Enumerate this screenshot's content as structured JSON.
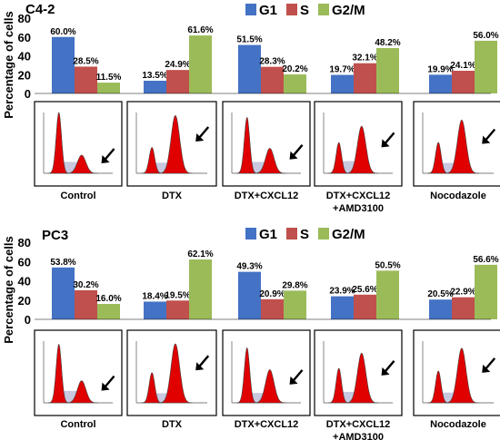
{
  "chart_data": [
    {
      "type": "bar",
      "panel_title": "C4-2",
      "ylabel": "Percentage of cells",
      "ylim": [
        0,
        80
      ],
      "yticks": [
        0,
        20,
        40,
        60,
        80
      ],
      "legend_placement": "top-center",
      "categories": [
        "Control",
        "DTX",
        "DTX+CXCL12",
        "DTX+CXCL12\n+AMD3100",
        "Nocodazole"
      ],
      "series": [
        {
          "name": "G1",
          "color": "#4472C4",
          "values": [
            60.0,
            13.5,
            51.5,
            19.7,
            19.9
          ],
          "labels": [
            "60.0%",
            "13.5%",
            "51.5%",
            "19.7%",
            "19.9%"
          ]
        },
        {
          "name": "S",
          "color": "#C0504D",
          "values": [
            28.5,
            24.9,
            28.3,
            32.1,
            24.1
          ],
          "labels": [
            "28.5%",
            "24.9%",
            "28.3%",
            "32.1%",
            "24.1%"
          ]
        },
        {
          "name": "G2/M",
          "color": "#9BBB59",
          "values": [
            11.5,
            61.6,
            20.2,
            48.2,
            56.0
          ],
          "labels": [
            "11.5%",
            "61.6%",
            "20.2%",
            "48.2%",
            "56.0%"
          ]
        }
      ],
      "histogram_colors": {
        "fill": "#E00000",
        "shade": "#C8C8E0",
        "line": "#444444"
      }
    },
    {
      "type": "bar",
      "panel_title": "PC3",
      "ylabel": "Percentage of cells",
      "ylim": [
        0,
        80
      ],
      "yticks": [
        0,
        20,
        40,
        60,
        80
      ],
      "legend_placement": "top-center",
      "categories": [
        "Control",
        "DTX",
        "DTX+CXCL12",
        "DTX+CXCL12\n+AMD3100",
        "Nocodazole"
      ],
      "series": [
        {
          "name": "G1",
          "color": "#4472C4",
          "values": [
            53.8,
            18.4,
            49.3,
            23.9,
            20.5
          ],
          "labels": [
            "53.8%",
            "18.4%",
            "49.3%",
            "23.9%",
            "20.5%"
          ]
        },
        {
          "name": "S",
          "color": "#C0504D",
          "values": [
            30.2,
            19.5,
            20.9,
            25.6,
            22.9
          ],
          "labels": [
            "30.2%",
            "19.5%",
            "20.9%",
            "25.6%",
            "22.9%"
          ]
        },
        {
          "name": "G2/M",
          "color": "#9BBB59",
          "values": [
            16.0,
            62.1,
            29.8,
            50.5,
            56.6
          ],
          "labels": [
            "16.0%",
            "62.1%",
            "29.8%",
            "50.5%",
            "56.6%"
          ]
        }
      ],
      "histogram_colors": {
        "fill": "#E00000",
        "shade": "#C8C8E0",
        "line": "#444444"
      }
    }
  ]
}
